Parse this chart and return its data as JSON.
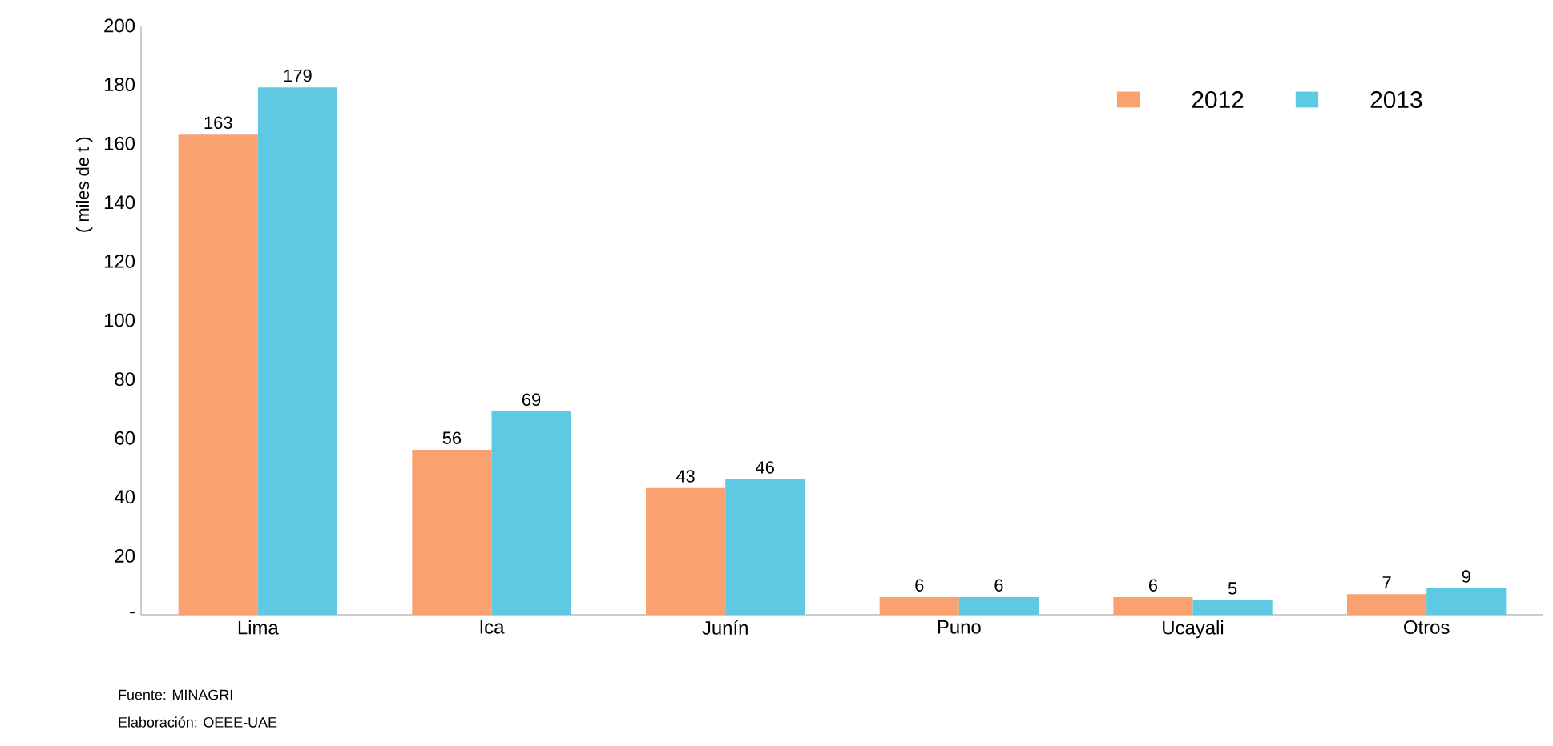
{
  "chart_data": {
    "type": "bar",
    "ylabel": "( miles de t )",
    "categories": [
      "Lima",
      "Ica",
      "Junín",
      "Puno",
      "Ucayali",
      "Otros"
    ],
    "series": [
      {
        "name": "2012",
        "color": "#f9a270",
        "values": [
          163,
          56,
          43,
          6,
          6,
          7
        ]
      },
      {
        "name": "2013",
        "color": "#5fc8e2",
        "values": [
          179,
          69,
          46,
          6,
          5,
          9
        ]
      }
    ],
    "ylim": [
      0,
      200
    ],
    "yticks": [
      {
        "value": 0,
        "label": "-"
      },
      20,
      40,
      60,
      80,
      100,
      120,
      140,
      160,
      180,
      200
    ],
    "data_labels": true,
    "legend": "top right",
    "grid": false,
    "annotations": [
      "Fuente: MINAGRI",
      "Elaboración: OEEE-UAE"
    ]
  }
}
